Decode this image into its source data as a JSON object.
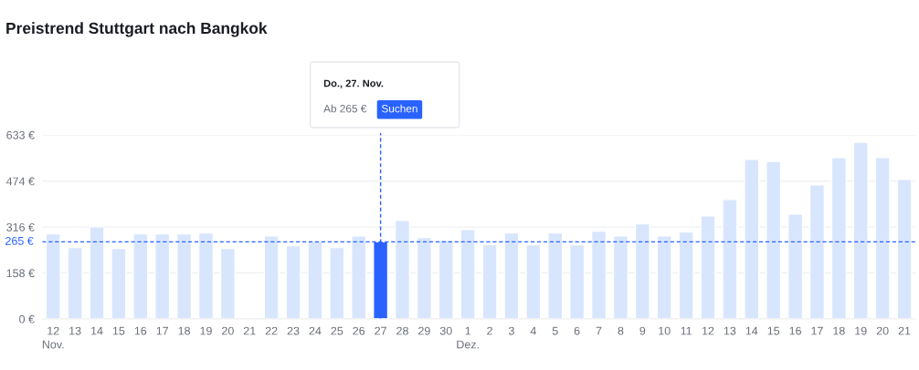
{
  "chart_data": {
    "type": "bar",
    "title": "Preistrend Stuttgart nach Bangkok",
    "categories": [
      "12",
      "13",
      "14",
      "15",
      "16",
      "17",
      "18",
      "19",
      "20",
      "21",
      "22",
      "23",
      "24",
      "25",
      "26",
      "27",
      "28",
      "29",
      "30",
      "1",
      "2",
      "3",
      "4",
      "5",
      "6",
      "7",
      "8",
      "9",
      "10",
      "11",
      "12",
      "13",
      "14",
      "15",
      "16",
      "17",
      "18",
      "19",
      "20",
      "21"
    ],
    "values": [
      293,
      246,
      317,
      243,
      293,
      293,
      293,
      296,
      243,
      null,
      286,
      252,
      268,
      246,
      286,
      265,
      339,
      280,
      271,
      308,
      256,
      296,
      255,
      296,
      255,
      302,
      286,
      327,
      286,
      299,
      355,
      411,
      549,
      542,
      361,
      461,
      555,
      608,
      555,
      480
    ],
    "colors": [
      "#d8e6fd",
      "#d8e6fd",
      "#d8e6fd",
      "#d8e6fd",
      "#d8e6fd",
      "#d8e6fd",
      "#d8e6fd",
      "#d8e6fd",
      "#d8e6fd",
      "#d8e6fd",
      "#d8e6fd",
      "#d8e6fd",
      "#d8e6fd",
      "#d8e6fd",
      "#d8e6fd",
      "#2962ff",
      "#d8e6fd",
      "#d8e6fd",
      "#d8e6fd",
      "#d8e6fd",
      "#d8e6fd",
      "#d8e6fd",
      "#d8e6fd",
      "#d8e6fd",
      "#d8e6fd",
      "#d8e6fd",
      "#d8e6fd",
      "#d8e6fd",
      "#d8e6fd",
      "#d8e6fd",
      "#d8e6fd",
      "#d8e6fd",
      "#d8e6fd",
      "#d8e6fd",
      "#d8e6fd",
      "#d8e6fd",
      "#d8e6fd",
      "#d8e6fd",
      "#d8e6fd",
      "#d8e6fd"
    ],
    "ylim": [
      0,
      633
    ],
    "yticks": [
      {
        "value": 0,
        "label": "0 €"
      },
      {
        "value": 158,
        "label": "158 €"
      },
      {
        "value": 316,
        "label": "316 €"
      },
      {
        "value": 474,
        "label": "474 €"
      },
      {
        "value": 633,
        "label": "633 €"
      }
    ],
    "grid": "y",
    "ref_lines": [
      {
        "axis": "y",
        "value": 265,
        "label": "265 €",
        "color": "#2962ff",
        "line_style": "dashed"
      },
      {
        "axis": "x",
        "value": "27",
        "color": "#2962ff",
        "line_style": "dashed"
      }
    ],
    "annotations": [
      "Nov.",
      "Dez.",
      "Do., 27. Nov.",
      "Ab 265 €",
      "Suchen"
    ]
  }
}
